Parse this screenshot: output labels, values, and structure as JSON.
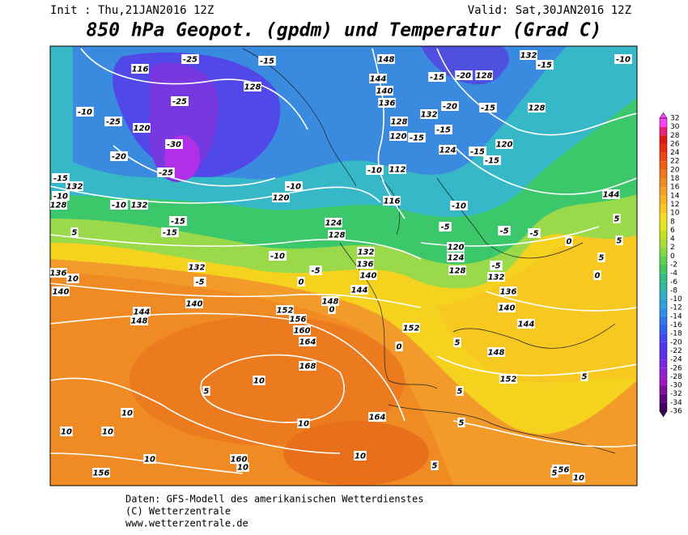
{
  "header": {
    "init": "Init : Thu,21JAN2016 12Z",
    "valid": "Valid: Sat,30JAN2016 12Z",
    "title": "850 hPa Geopot. (gpdm) und Temperatur (Grad C)"
  },
  "map": {
    "labels": [
      "116",
      "-25",
      "-10",
      "120",
      "-25",
      "-20",
      "-30",
      "-25",
      "-15",
      "132",
      "-10",
      "128",
      "-10",
      "132",
      "-15",
      "-15",
      "5",
      "136",
      "132",
      "10",
      "140",
      "140",
      "144",
      "148",
      "152",
      "156",
      "160",
      "164",
      "168",
      "10",
      "5",
      "10",
      "10",
      "164",
      "10",
      "10",
      "160",
      "10",
      "10",
      "156",
      "10",
      "5",
      "156",
      "10",
      "5",
      "-15",
      "128",
      "148",
      "144",
      "140",
      "136",
      "-15",
      "-20",
      "128",
      "132",
      "-15",
      "-10",
      "-20",
      "132",
      "-15",
      "128",
      "128",
      "120",
      "-15",
      "-15",
      "124",
      "-15",
      "120",
      "-15",
      "-10",
      "112",
      "-10",
      "120",
      "116",
      "-10",
      "124",
      "128",
      "-5",
      "-5",
      "-5",
      "120",
      "124",
      "-10",
      "132",
      "136",
      "140",
      "-5",
      "128",
      "132",
      "136",
      "144",
      "148",
      "140",
      "144",
      "148",
      "152",
      "152",
      "0",
      "5",
      "5",
      "144",
      "5",
      "5",
      "0",
      "5",
      "0",
      "-5",
      "5",
      "5",
      "0",
      "-5",
      "0",
      "-25"
    ]
  },
  "colorbar": {
    "ticks": [
      32,
      30,
      28,
      26,
      24,
      22,
      20,
      18,
      16,
      14,
      12,
      10,
      8,
      6,
      4,
      2,
      0,
      -2,
      -4,
      -6,
      -8,
      -10,
      -12,
      -14,
      -16,
      -18,
      -20,
      -22,
      -24,
      -26,
      -28,
      -30,
      -32,
      -34,
      -36
    ],
    "colors": [
      "#ff40ff",
      "#e8207a",
      "#e01818",
      "#e83010",
      "#ee4810",
      "#f06010",
      "#f07818",
      "#f28c1e",
      "#f4a020",
      "#f6b420",
      "#f6c820",
      "#f6dc20",
      "#e6e620",
      "#c8e020",
      "#a8dc30",
      "#88d840",
      "#60d050",
      "#40c860",
      "#30c080",
      "#30b8a0",
      "#30b0c0",
      "#30a0d8",
      "#3090e8",
      "#3078f0",
      "#3060f0",
      "#4048f0",
      "#5038f0",
      "#6030e8",
      "#7828e0",
      "#9020d8",
      "#a018c8",
      "#8010a0",
      "#600880",
      "#400060"
    ]
  },
  "footer": {
    "lines": [
      "Daten: GFS-Modell des amerikanischen Wetterdienstes",
      "(C) Wetterzentrale",
      "www.wetterzentrale.de"
    ]
  }
}
